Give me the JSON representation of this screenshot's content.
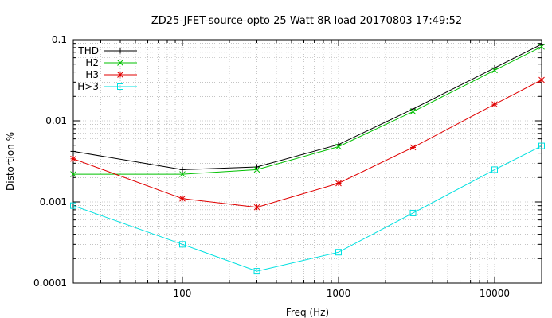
{
  "chart_data": {
    "type": "line",
    "title": "ZD25-JFET-source-opto 25 Watt 8R load 20170803 17:49:52",
    "xlabel": "Freq (Hz)",
    "ylabel": "Distortion %",
    "xscale": "log",
    "yscale": "log",
    "xlim": [
      20,
      20000
    ],
    "ylim": [
      0.0001,
      0.1
    ],
    "grid": true,
    "legend_position": "top-left",
    "x_tick_labels": [
      "100",
      "1000",
      "10000"
    ],
    "x_tick_values": [
      100,
      1000,
      10000
    ],
    "y_tick_labels": [
      "0.0001",
      "0.001",
      "0.01",
      "0.1"
    ],
    "y_tick_values": [
      0.0001,
      0.001,
      0.01,
      0.1
    ],
    "x": [
      20,
      100,
      300,
      1000,
      3000,
      10000,
      20000
    ],
    "series": [
      {
        "name": "THD",
        "color": "#000000",
        "marker": "plus",
        "values": [
          0.0042,
          0.0025,
          0.0027,
          0.0051,
          0.014,
          0.045,
          0.088
        ]
      },
      {
        "name": "H2",
        "color": "#00c000",
        "marker": "cross",
        "values": [
          0.0022,
          0.0022,
          0.0025,
          0.0048,
          0.013,
          0.042,
          0.082
        ]
      },
      {
        "name": "H3",
        "color": "#e00000",
        "marker": "star",
        "values": [
          0.0034,
          0.0011,
          0.00086,
          0.0017,
          0.0047,
          0.016,
          0.032
        ]
      },
      {
        "name": "H>3",
        "color": "#00e0e0",
        "marker": "square",
        "values": [
          0.0009,
          0.0003,
          0.00014,
          0.00024,
          0.00073,
          0.0025,
          0.0049
        ]
      }
    ]
  }
}
